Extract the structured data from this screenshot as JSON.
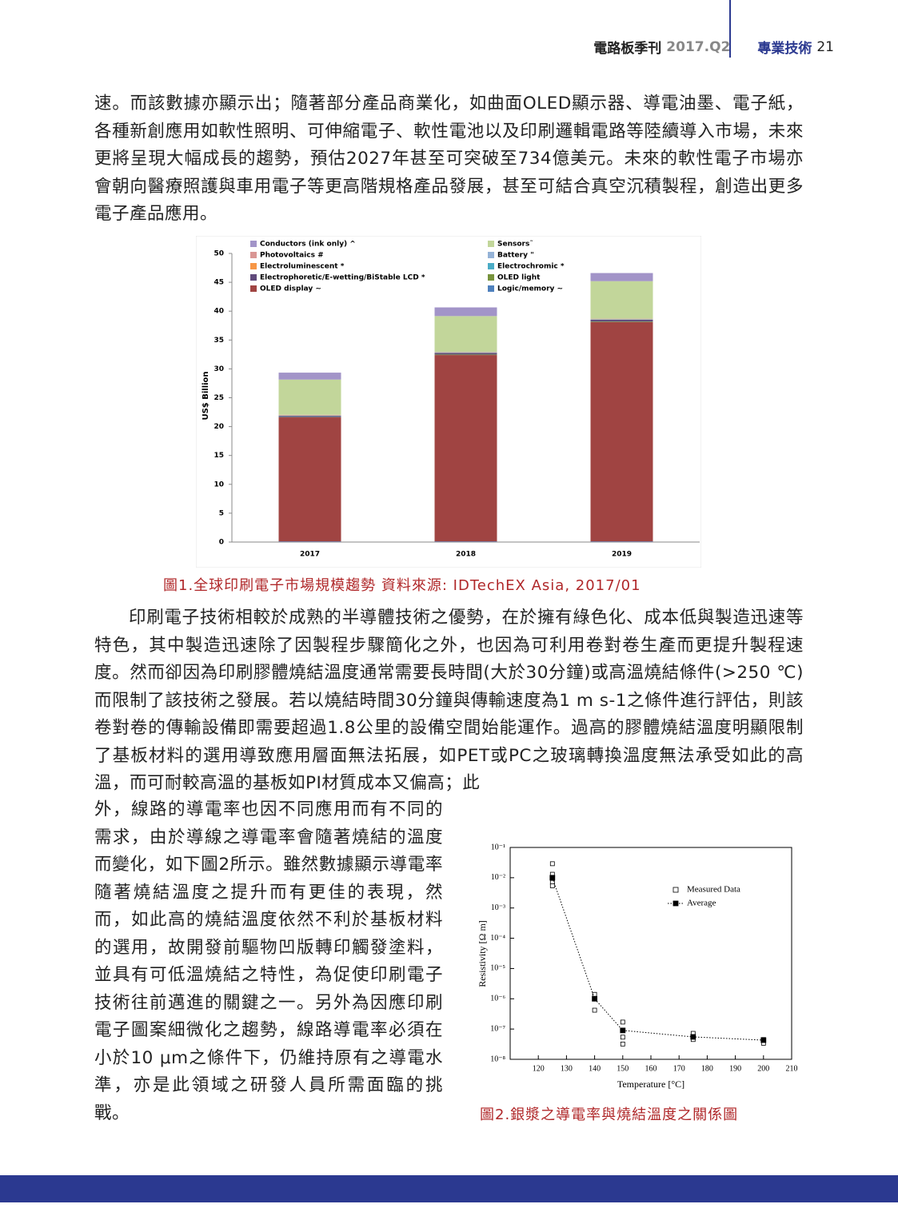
{
  "header": {
    "journal": "電路板季刊",
    "issue": "2017.Q2",
    "section": "專業技術",
    "page": "21"
  },
  "paragraphs": [
    "速。而該數據亦顯示出；隨著部分產品商業化，如曲面OLED顯示器、導電油墨、電子紙，各種新創應用如軟性照明、可伸縮電子、軟性電池以及印刷邏輯電路等陸續導入市場，未來更將呈現大幅成長的趨勢，預估2027年甚至可突破至734億美元。未來的軟性電子市場亦會朝向醫療照護與車用電子等更高階規格產品發展，甚至可結合真空沉積製程，創造出更多電子產品應用。",
    "印刷電子技術相較於成熟的半導體技術之優勢，在於擁有綠色化、成本低與製造迅速等特色，其中製造迅速除了因製程步驟簡化之外，也因為可利用卷對卷生產而更提升製程速度。然而卻因為印刷膠體燒結溫度通常需要長時間(大於30分鐘)或高溫燒結條件(>250 ℃)而限制了該技術之發展。若以燒結時間30分鐘與傳輸速度為1 m s-1之條件進行評估，則該卷對卷的傳輸設備即需要超過1.8公里的設備空間始能運作。過高的膠體燒結溫度明顯限制了基板材料的選用導致應用層面無法拓展，如PET或PC之玻璃轉換溫度無法承受如此的高溫，而可耐較高溫的基板如PI材質成本又偏高；此",
    "外，線路的導電率也因不同應用而有不同的需求，由於導線之導電率會隨著燒結的溫度而變化，如下圖2所示。雖然數據顯示導電率隨著燒結溫度之提升而有更佳的表現，然而，如此高的燒結溫度依然不利於基板材料的選用，故開發前驅物凹版轉印觸發塗料，並具有可低溫燒結之特性，為促使印刷電子技術往前邁進的關鍵之一。另外為因應印刷電子圖案細微化之趨勢，線路導電率必須在小於10 μm之條件下，仍維持原有之導電水準，亦是此領域之研發人員所需面臨的挑戰。"
  ],
  "chart_data": [
    {
      "type": "bar",
      "stacked": true,
      "ylabel": "US$ Billion",
      "caption": "圖1.全球印刷電子市場規模趨勢  資料來源: IDTechEX Asia, 2017/01",
      "categories": [
        "2017",
        "2018",
        "2019"
      ],
      "ylim": [
        0,
        50
      ],
      "yticks": [
        0,
        5,
        10,
        15,
        20,
        25,
        30,
        35,
        40,
        45,
        50
      ],
      "grid": false,
      "legend": "top-left",
      "series": [
        {
          "name": "Conductors (ink only) ^",
          "color": "#a294c8",
          "values": [
            1.2,
            1.5,
            1.4
          ]
        },
        {
          "name": "Sensors˜",
          "color": "#c2d69a",
          "values": [
            6.1,
            6.2,
            6.5
          ]
        },
        {
          "name": "Photovoltaics #",
          "color": "#d99694",
          "values": [
            0.05,
            0.05,
            0.05
          ]
        },
        {
          "name": "Battery \"",
          "color": "#95b3d7",
          "values": [
            0.05,
            0.05,
            0.05
          ]
        },
        {
          "name": "Electroluminescent *",
          "color": "#f79646",
          "values": [
            0.05,
            0.05,
            0.05
          ]
        },
        {
          "name": "Electrochromic *",
          "color": "#4bacc6",
          "values": [
            0.05,
            0.05,
            0.05
          ]
        },
        {
          "name": "Electrophoretic/E-wetting/BiStable LCD *",
          "color": "#604a7b",
          "values": [
            0.2,
            0.25,
            0.3
          ]
        },
        {
          "name": "OLED light",
          "color": "#77933c",
          "values": [
            0.05,
            0.1,
            0.1
          ]
        },
        {
          "name": "OLED display ~",
          "color": "#a04442",
          "values": [
            21.5,
            32.3,
            38
          ]
        },
        {
          "name": "Logic/memory ~",
          "color": "#4f81bd",
          "values": [
            0.1,
            0.1,
            0.1
          ]
        }
      ]
    },
    {
      "type": "scatter",
      "xlabel": "Temperature [°C]",
      "ylabel": "Resistivity [Ω m]",
      "caption": "圖2.銀漿之導電率與燒結溫度之關係圖",
      "xlim": [
        110,
        210
      ],
      "xticks": [
        120,
        130,
        140,
        150,
        160,
        170,
        180,
        190,
        200,
        210
      ],
      "ylog": true,
      "ylim": [
        1e-08,
        0.1
      ],
      "yticks": [
        {
          "value": 1e-08,
          "label": "10⁻⁸"
        },
        {
          "value": 1e-07,
          "label": "10⁻⁷"
        },
        {
          "value": 1e-06,
          "label": "10⁻⁶"
        },
        {
          "value": 1e-05,
          "label": "10⁻⁵"
        },
        {
          "value": 0.0001,
          "label": "10⁻⁴"
        },
        {
          "value": 0.001,
          "label": "10⁻³"
        },
        {
          "value": 0.01,
          "label": "10⁻²"
        },
        {
          "value": 0.1,
          "label": "10⁻¹"
        }
      ],
      "legend": "top-right",
      "series": [
        {
          "name": "Measured Data",
          "color": "#000000",
          "marker": "open-square",
          "x": [
            125,
            125,
            125,
            125,
            125,
            140,
            140,
            150,
            150,
            150,
            175,
            175,
            200,
            200
          ],
          "values": [
            0.029,
            0.013,
            0.0093,
            0.007,
            0.0054,
            1.4e-06,
            4.2e-07,
            1.7e-07,
            5.4e-08,
            3.2e-08,
            7.2e-08,
            4.5e-08,
            4.5e-08,
            3.4e-08
          ]
        },
        {
          "name": "Average",
          "color": "#000000",
          "marker": "filled-square",
          "line": "dotted",
          "x": [
            125,
            140,
            150,
            175,
            200
          ],
          "values": [
            0.01,
            1e-06,
            9e-08,
            5.5e-08,
            4.3e-08
          ]
        }
      ]
    }
  ]
}
